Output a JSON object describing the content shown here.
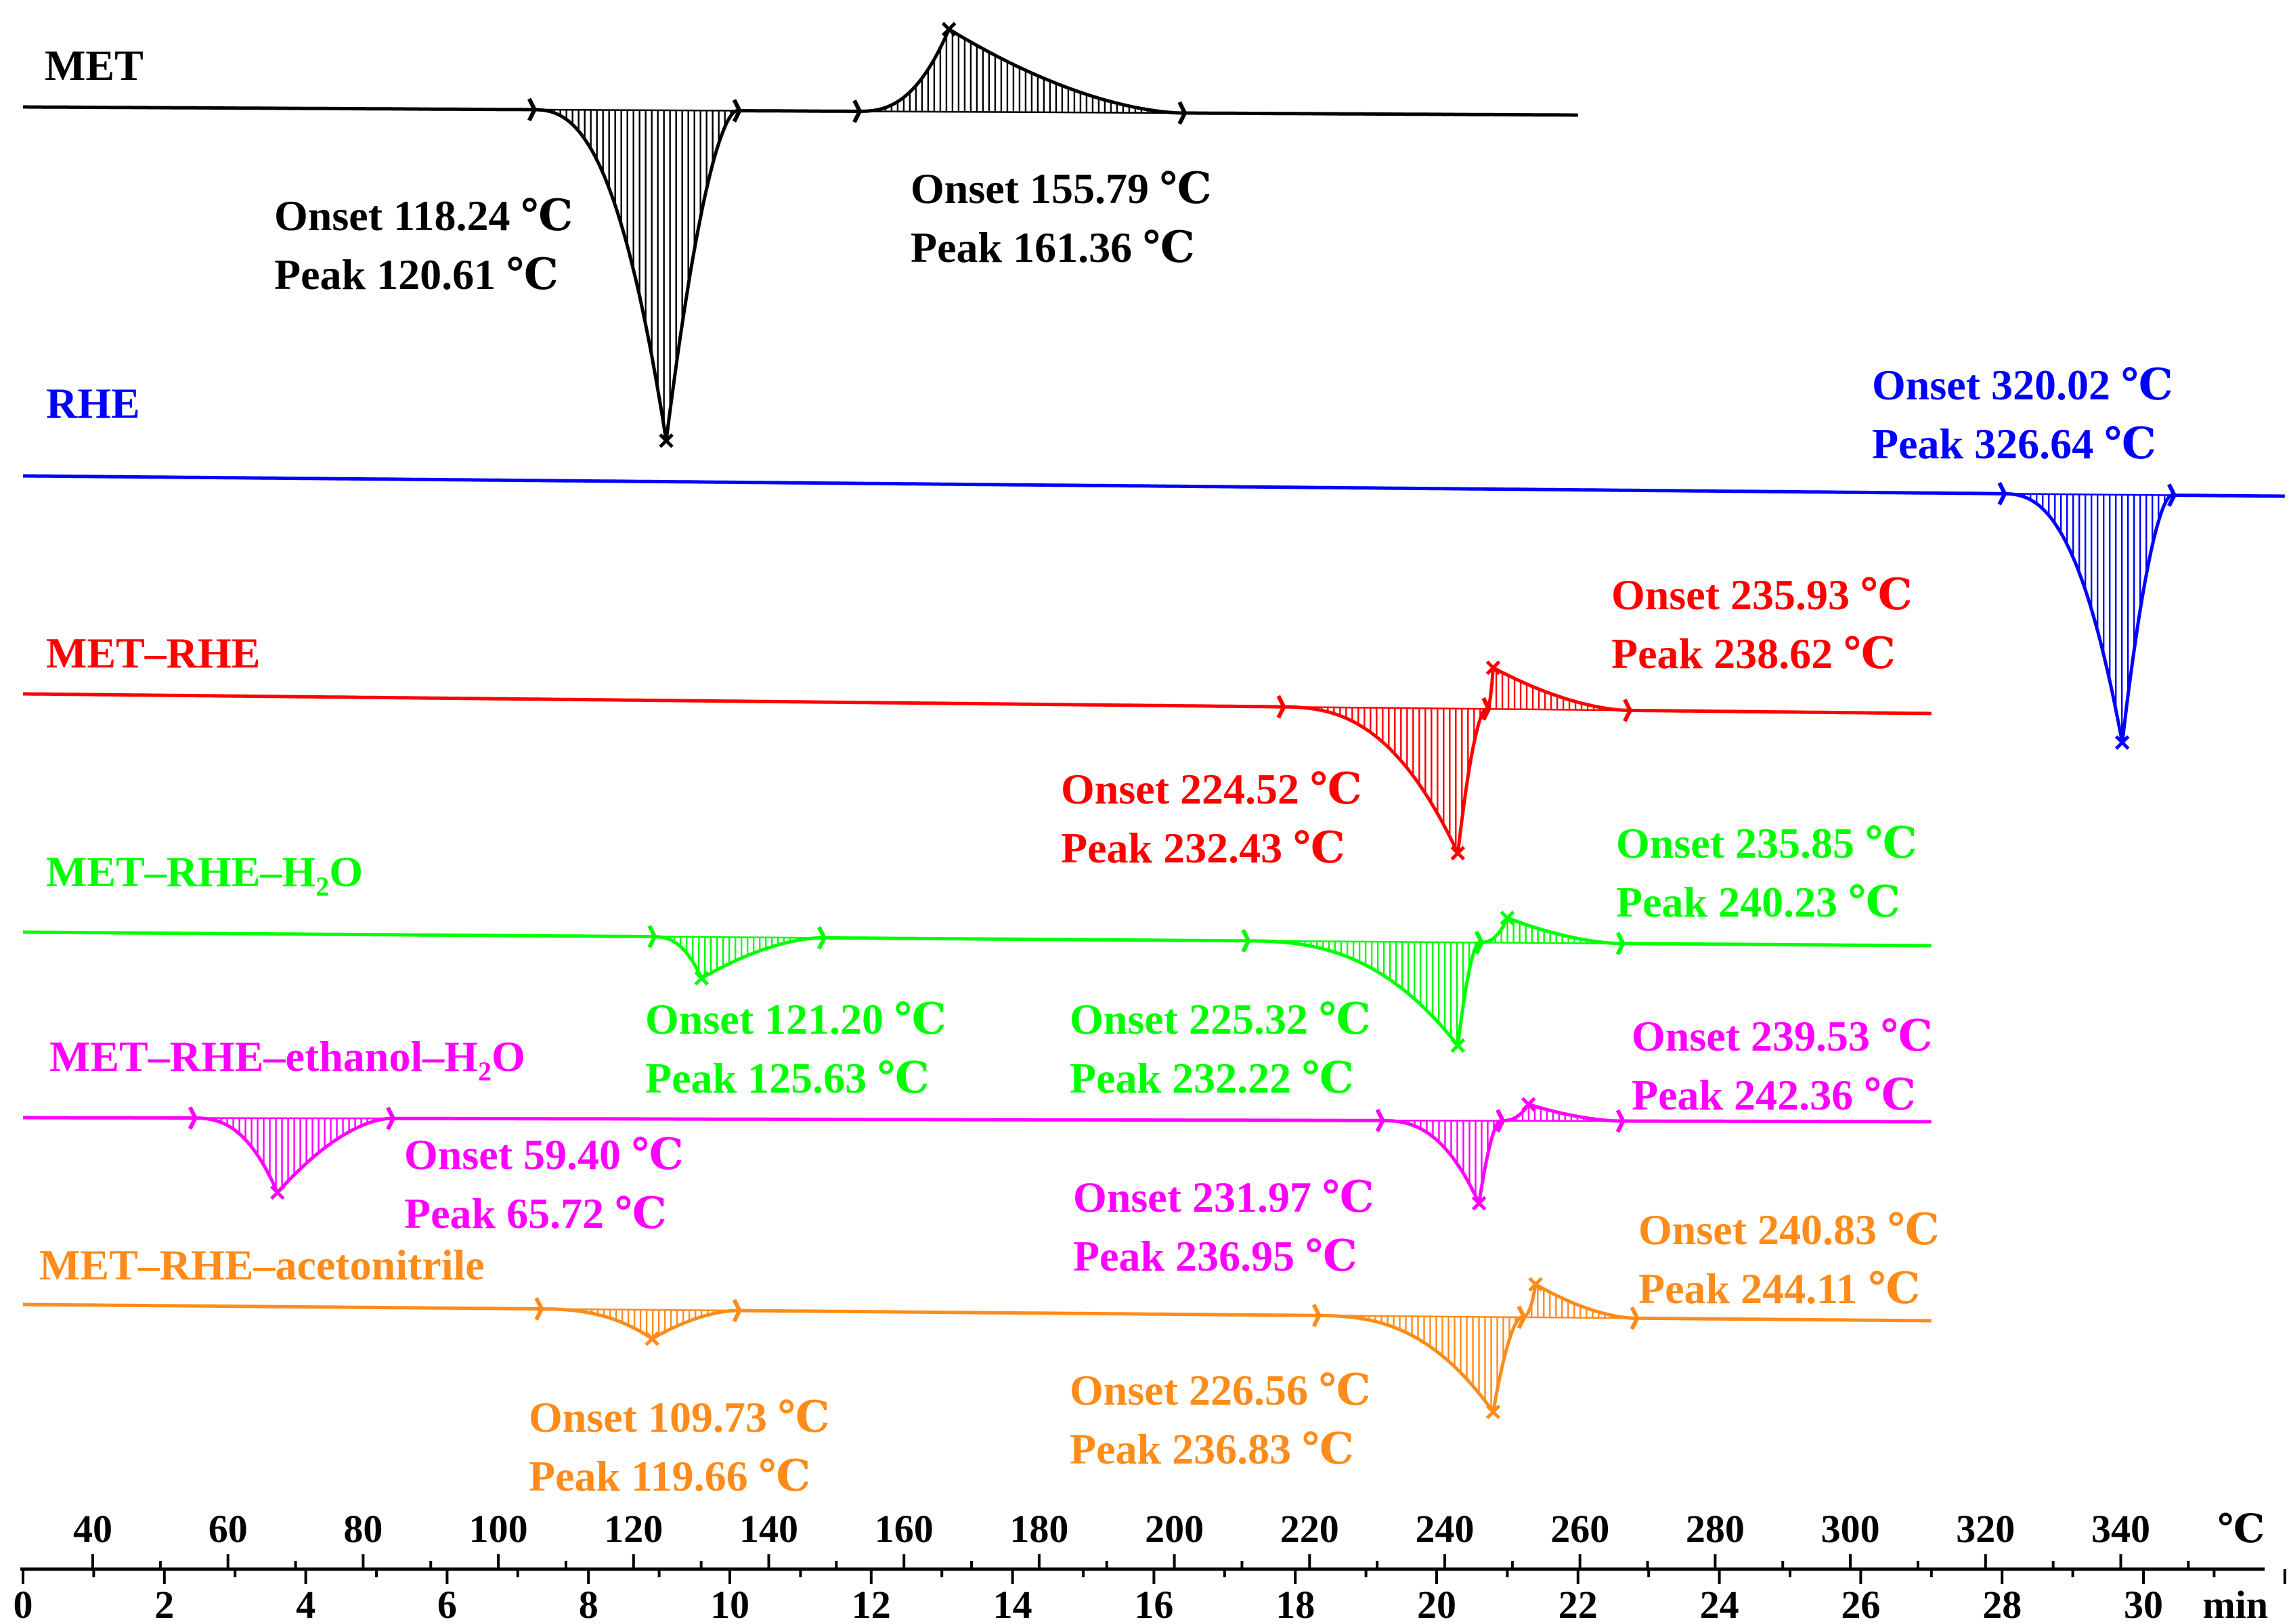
{
  "chart_data": {
    "type": "line",
    "title": "",
    "temperature_axis": {
      "unit": "℃",
      "ticks": [
        "40",
        "60",
        "80",
        "100",
        "120",
        "140",
        "160",
        "180",
        "200",
        "220",
        "240",
        "260",
        "280",
        "300",
        "320",
        "340"
      ]
    },
    "time_axis": {
      "unit": "min",
      "ticks": [
        "0",
        "2",
        "4",
        "6",
        "8",
        "10",
        "12",
        "14",
        "16",
        "18",
        "20",
        "22",
        "24",
        "26",
        "28",
        "30"
      ],
      "range": [
        0,
        32
      ]
    },
    "grid": false,
    "series": [
      {
        "name": "MET",
        "color": "#000000",
        "time_range_min": [
          0,
          22
        ],
        "events": [
          {
            "type": "endotherm",
            "start_min": 7.2,
            "end_min": 10.1,
            "peak_min": 9.1,
            "depth": 8.0,
            "labels": [
              "Onset 118.24 ℃",
              "Peak   120.61 ℃"
            ]
          },
          {
            "type": "exotherm",
            "start_min": 11.8,
            "end_min": 16.4,
            "peak_min": 13.1,
            "depth": 2.0,
            "labels": [
              "Onset 155.79 ℃",
              "Peak   161.36 ℃"
            ]
          }
        ]
      },
      {
        "name": "RHE",
        "color": "#0000ff",
        "time_range_min": [
          0,
          32
        ],
        "events": [
          {
            "type": "endotherm",
            "start_min": 28.0,
            "end_min": 30.4,
            "peak_min": 29.7,
            "depth": 6.0,
            "labels": [
              "Onset 320.02 ℃",
              "Peak   326.64 ℃"
            ]
          }
        ]
      },
      {
        "name": "MET–RHE",
        "color": "#ff0000",
        "time_range_min": [
          0,
          27
        ],
        "events": [
          {
            "type": "endotherm",
            "start_min": 17.8,
            "end_min": 20.7,
            "peak_min": 20.3,
            "depth": 3.5,
            "labels": [
              "Onset 224.52 ℃",
              "Peak   232.43 ℃"
            ]
          },
          {
            "type": "exotherm",
            "start_min": 20.7,
            "end_min": 22.7,
            "peak_min": 20.8,
            "depth": 1.0,
            "labels": [
              "Onset 235.93 ℃",
              "Peak   238.62 ℃"
            ]
          }
        ]
      },
      {
        "name": "MET–RHE–H",
        "name_subscript": "2",
        "name_suffix": "O",
        "color": "#00ff00",
        "time_range_min": [
          0,
          27
        ],
        "events": [
          {
            "type": "endotherm",
            "start_min": 8.9,
            "end_min": 11.3,
            "peak_min": 9.6,
            "depth": 1.0,
            "labels": [
              "Onset 121.20 ℃",
              "Peak   125.63 ℃"
            ]
          },
          {
            "type": "endotherm",
            "start_min": 17.3,
            "end_min": 20.6,
            "peak_min": 20.3,
            "depth": 2.5,
            "labels": [
              "Onset 225.32 ℃",
              "Peak   232.22 ℃"
            ]
          },
          {
            "type": "exotherm",
            "start_min": 20.6,
            "end_min": 22.6,
            "peak_min": 21.0,
            "depth": 0.6,
            "labels": [
              "Onset 235.85 ℃",
              "Peak   240.23 ℃"
            ]
          }
        ]
      },
      {
        "name": "MET–RHE–ethanol–H",
        "name_subscript": "2",
        "name_suffix": "O",
        "color": "#ff00ff",
        "time_range_min": [
          0,
          27
        ],
        "events": [
          {
            "type": "endotherm",
            "start_min": 2.4,
            "end_min": 5.2,
            "peak_min": 3.6,
            "depth": 1.8,
            "labels": [
              "Onset 59.40 ℃",
              "Peak  65.72 ℃"
            ]
          },
          {
            "type": "endotherm",
            "start_min": 19.2,
            "end_min": 20.9,
            "peak_min": 20.6,
            "depth": 2.0,
            "labels": [
              "Onset 231.97 ℃",
              "Peak  236.95 ℃"
            ]
          },
          {
            "type": "exotherm",
            "start_min": 20.9,
            "end_min": 22.6,
            "peak_min": 21.3,
            "depth": 0.4,
            "labels": [
              "Onset 239.53 ℃",
              "Peak  242.36 ℃"
            ]
          }
        ]
      },
      {
        "name": "MET–RHE–acetonitrile",
        "color": "#ff8c1a",
        "time_range_min": [
          0,
          27
        ],
        "events": [
          {
            "type": "endotherm",
            "start_min": 7.3,
            "end_min": 10.1,
            "peak_min": 8.9,
            "depth": 0.7,
            "labels": [
              "Onset 109.73 ℃",
              "Peak   119.66 ℃"
            ]
          },
          {
            "type": "endotherm",
            "start_min": 18.3,
            "end_min": 21.2,
            "peak_min": 20.8,
            "depth": 2.3,
            "labels": [
              "Onset 226.56 ℃",
              "Peak   236.83 ℃"
            ]
          },
          {
            "type": "exotherm",
            "start_min": 21.2,
            "end_min": 22.8,
            "peak_min": 21.4,
            "depth": 0.8,
            "labels": [
              "Onset 240.83 ℃",
              "Peak   244.11 ℃"
            ]
          }
        ]
      }
    ]
  }
}
